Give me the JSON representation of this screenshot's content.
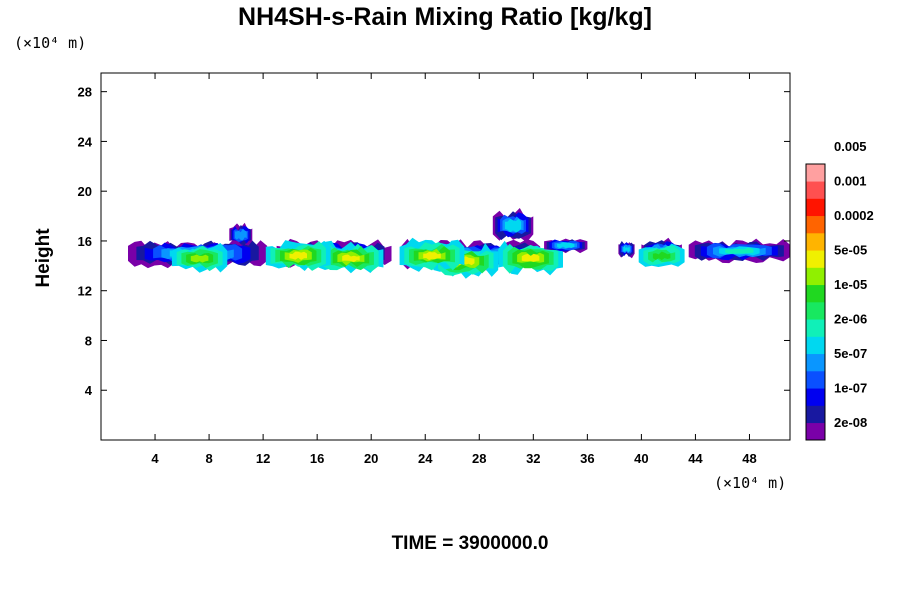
{
  "chart_data": {
    "type": "heatmap",
    "title": "NH4SH-s-Rain Mixing Ratio [kg/kg]",
    "ylabel": "Height",
    "x_unit": "(×10⁴ m)",
    "y_unit": "(×10⁴ m)",
    "footer": "TIME = 3900000.0",
    "xlim": [
      0,
      51
    ],
    "ylim": [
      0,
      29.5
    ],
    "x_ticks": [
      4,
      8,
      12,
      16,
      20,
      24,
      28,
      32,
      36,
      40,
      44,
      48
    ],
    "y_ticks": [
      4,
      8,
      12,
      16,
      20,
      24,
      28
    ],
    "colorbar": {
      "colors": [
        "#7a00a8",
        "#1818a0",
        "#0000f0",
        "#0a50ff",
        "#0a96ff",
        "#00d8f0",
        "#10f0b8",
        "#18e860",
        "#20d820",
        "#90f000",
        "#f0f000",
        "#ffb400",
        "#ff6400",
        "#ff1400",
        "#ff5050",
        "#ffa0a0"
      ],
      "labels": [
        "2e-08",
        "1e-07",
        "5e-07",
        "2e-06",
        "1e-05",
        "5e-05",
        "0.0002",
        "0.001",
        "0.005"
      ]
    },
    "cloud_features": [
      {
        "x": [
          2,
          12.3
        ],
        "y_bottom": 13.8,
        "y_top": 16.2,
        "peak_level": 9,
        "cores": [
          {
            "x": 7.3,
            "y": 14.6
          }
        ]
      },
      {
        "x": [
          9.5,
          11.2
        ],
        "y_bottom": 15.5,
        "y_top": 17.5,
        "peak_level": 4,
        "cores": []
      },
      {
        "x": [
          13,
          21.5
        ],
        "y_bottom": 13.8,
        "y_top": 16.2,
        "peak_level": 10,
        "cores": [
          {
            "x": 18.5,
            "y": 14.6
          },
          {
            "x": 14.6,
            "y": 14.8
          }
        ]
      },
      {
        "x": [
          22.2,
          32.5
        ],
        "y_bottom": 13.6,
        "y_top": 16.2,
        "peak_level": 10,
        "cores": [
          {
            "x": 27,
            "y": 14.4
          },
          {
            "x": 24.5,
            "y": 14.8
          },
          {
            "x": 31.8,
            "y": 14.6
          }
        ]
      },
      {
        "x": [
          29,
          32
        ],
        "y_bottom": 15.8,
        "y_top": 18.7,
        "peak_level": 5,
        "cores": []
      },
      {
        "x": [
          32.8,
          36
        ],
        "y_bottom": 15,
        "y_top": 16.3,
        "peak_level": 5,
        "cores": []
      },
      {
        "x": [
          38.3,
          39.5
        ],
        "y_bottom": 14.6,
        "y_top": 16.1,
        "peak_level": 5,
        "cores": []
      },
      {
        "x": [
          40,
          43
        ],
        "y_bottom": 14,
        "y_top": 16.3,
        "peak_level": 8,
        "cores": [
          {
            "x": 41.5,
            "y": 14.8
          }
        ]
      },
      {
        "x": [
          43.5,
          51
        ],
        "y_bottom": 14.2,
        "y_top": 16.2,
        "peak_level": 6,
        "cores": []
      }
    ]
  }
}
